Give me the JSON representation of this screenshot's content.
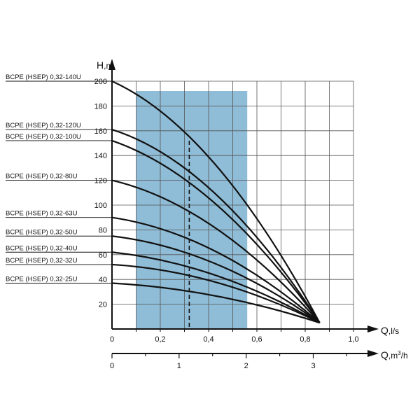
{
  "chart_data": {
    "type": "line",
    "title": "",
    "ylabel": "H,m",
    "ylabel_parts": [
      "H",
      ",m"
    ],
    "xlabel": "Q,l/s",
    "xlabel_parts": [
      "Q",
      ",l/s"
    ],
    "x2label": "Q,m3/h",
    "x2label_parts": [
      "Q",
      ",m",
      "3",
      "/h"
    ],
    "xlim": [
      0,
      1.0
    ],
    "ylim": [
      0,
      200
    ],
    "x_ticks": [
      0,
      0.2,
      0.4,
      0.6,
      0.8,
      1.0
    ],
    "x_tick_labels": [
      "0",
      "0,2",
      "0,4",
      "0,6",
      "0,8",
      "1,0"
    ],
    "y_ticks": [
      20,
      40,
      60,
      80,
      100,
      120,
      140,
      160,
      180,
      200
    ],
    "y_tick_labels": [
      "20",
      "40",
      "60",
      "80",
      "100",
      "120",
      "140",
      "160",
      "180",
      "200"
    ],
    "x2_ticks_m3h": [
      0,
      1,
      2,
      3
    ],
    "x2_tick_labels": [
      "0",
      "1",
      "2",
      "3"
    ],
    "grid": true,
    "grid_x_step": 0.1,
    "grid_y_step": 20,
    "working_range": {
      "q_min": 0.1,
      "q_max": 0.56,
      "color": "#8fbcd6"
    },
    "nominal_q": 0.32,
    "converge_point": {
      "q": 0.86,
      "h": 5
    },
    "curve_color": "#111111",
    "series": [
      {
        "name": "BCPE (HSEP) 0,32-140U",
        "h0": 200,
        "mid_q": 0.3,
        "mid_h": 159
      },
      {
        "name": "BCPE (HSEP) 0,32-120U",
        "h0": 161,
        "mid_q": 0.3,
        "mid_h": 130
      },
      {
        "name": "BCPE (HSEP) 0,32-100U",
        "h0": 152,
        "mid_q": 0.3,
        "mid_h": 121
      },
      {
        "name": "BCPE (HSEP) 0,32-80U",
        "h0": 120,
        "mid_q": 0.3,
        "mid_h": 97
      },
      {
        "name": "BCPE (HSEP) 0,32-63U",
        "h0": 90,
        "mid_q": 0.3,
        "mid_h": 74
      },
      {
        "name": "BCPE (HSEP) 0,32-50U",
        "h0": 75,
        "mid_q": 0.3,
        "mid_h": 62
      },
      {
        "name": "BCPE (HSEP) 0,32-40U",
        "h0": 62,
        "mid_q": 0.3,
        "mid_h": 51
      },
      {
        "name": "BCPE (HSEP) 0,32-32U",
        "h0": 52,
        "mid_q": 0.3,
        "mid_h": 44
      },
      {
        "name": "BCPE (HSEP) 0,32-25U",
        "h0": 37,
        "mid_q": 0.3,
        "mid_h": 31
      }
    ]
  }
}
